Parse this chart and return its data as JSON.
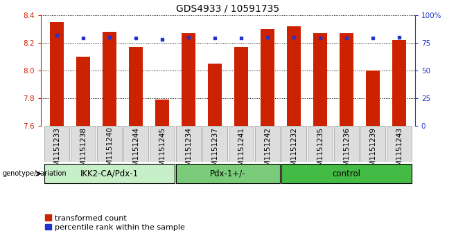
{
  "title": "GDS4933 / 10591735",
  "samples": [
    "GSM1151233",
    "GSM1151238",
    "GSM1151240",
    "GSM1151244",
    "GSM1151245",
    "GSM1151234",
    "GSM1151237",
    "GSM1151241",
    "GSM1151242",
    "GSM1151232",
    "GSM1151235",
    "GSM1151236",
    "GSM1151239",
    "GSM1151243"
  ],
  "red_values": [
    8.35,
    8.1,
    8.28,
    8.17,
    7.79,
    8.27,
    8.05,
    8.17,
    8.3,
    8.32,
    8.27,
    8.27,
    8.0,
    8.22
  ],
  "blue_values": [
    82,
    79,
    80,
    79,
    78,
    80,
    79,
    79,
    80,
    80,
    79,
    79,
    79,
    80
  ],
  "groups": [
    {
      "label": "IKK2-CA/Pdx-1",
      "start": 0,
      "end": 5,
      "color": "#c8f0c8"
    },
    {
      "label": "Pdx-1+/-",
      "start": 5,
      "end": 9,
      "color": "#7acc7a"
    },
    {
      "label": "control",
      "start": 9,
      "end": 14,
      "color": "#44bb44"
    }
  ],
  "ylim_left": [
    7.6,
    8.4
  ],
  "ylim_right": [
    0,
    100
  ],
  "yticks_left": [
    7.6,
    7.8,
    8.0,
    8.2,
    8.4
  ],
  "yticks_right": [
    0,
    25,
    50,
    75,
    100
  ],
  "ytick_labels_right": [
    "0",
    "25",
    "50",
    "75",
    "100%"
  ],
  "bar_color": "#cc2200",
  "dot_color": "#2233cc",
  "bar_bottom": 7.6,
  "bar_width": 0.55,
  "background_color": "#ffffff",
  "grid_color": "#000000",
  "group_label_x": "genotype/variation",
  "legend_red": "transformed count",
  "legend_blue": "percentile rank within the sample",
  "title_fontsize": 10,
  "tick_fontsize": 7.5,
  "label_fontsize": 8,
  "group_fontsize": 8.5,
  "legend_fontsize": 8
}
